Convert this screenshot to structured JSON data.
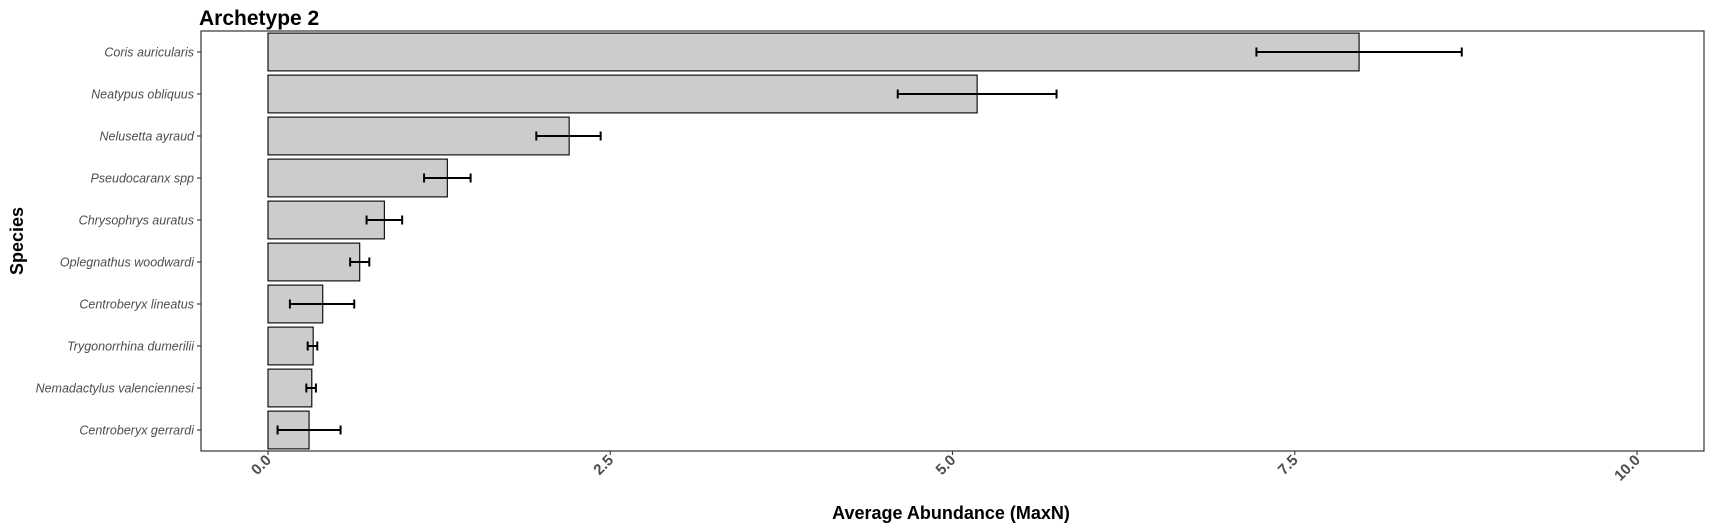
{
  "chart_data": {
    "type": "bar",
    "orientation": "horizontal",
    "title": "Archetype 2",
    "xlabel": "Average Abundance (MaxN)",
    "ylabel": "Species",
    "xlim": [
      -0.25,
      10.5
    ],
    "xticks": [
      0.0,
      2.5,
      5.0,
      7.5,
      10.0
    ],
    "xtick_labels": [
      "0.0",
      "2.5",
      "5.0",
      "7.5",
      "10.0"
    ],
    "grid": false,
    "bar_color": "#cccccc",
    "bar_edge_color": "#000000",
    "categories": [
      "Coris auricularis",
      "Neatypus obliquus",
      "Nelusetta ayraud",
      "Pseudocaranx spp",
      "Chrysophrys auratus",
      "Oplegnathus woodwardi",
      "Centroberyx lineatus",
      "Trygonorrhina dumerilii",
      "Nemadactylus valenciennesi",
      "Centroberyx gerrardi"
    ],
    "values": [
      7.97,
      5.18,
      2.2,
      1.31,
      0.85,
      0.67,
      0.4,
      0.33,
      0.32,
      0.3
    ],
    "error_low": [
      7.22,
      4.6,
      1.96,
      1.14,
      0.72,
      0.6,
      0.16,
      0.29,
      0.28,
      0.07
    ],
    "error_high": [
      8.72,
      5.76,
      2.43,
      1.48,
      0.98,
      0.74,
      0.63,
      0.36,
      0.35,
      0.53
    ]
  }
}
